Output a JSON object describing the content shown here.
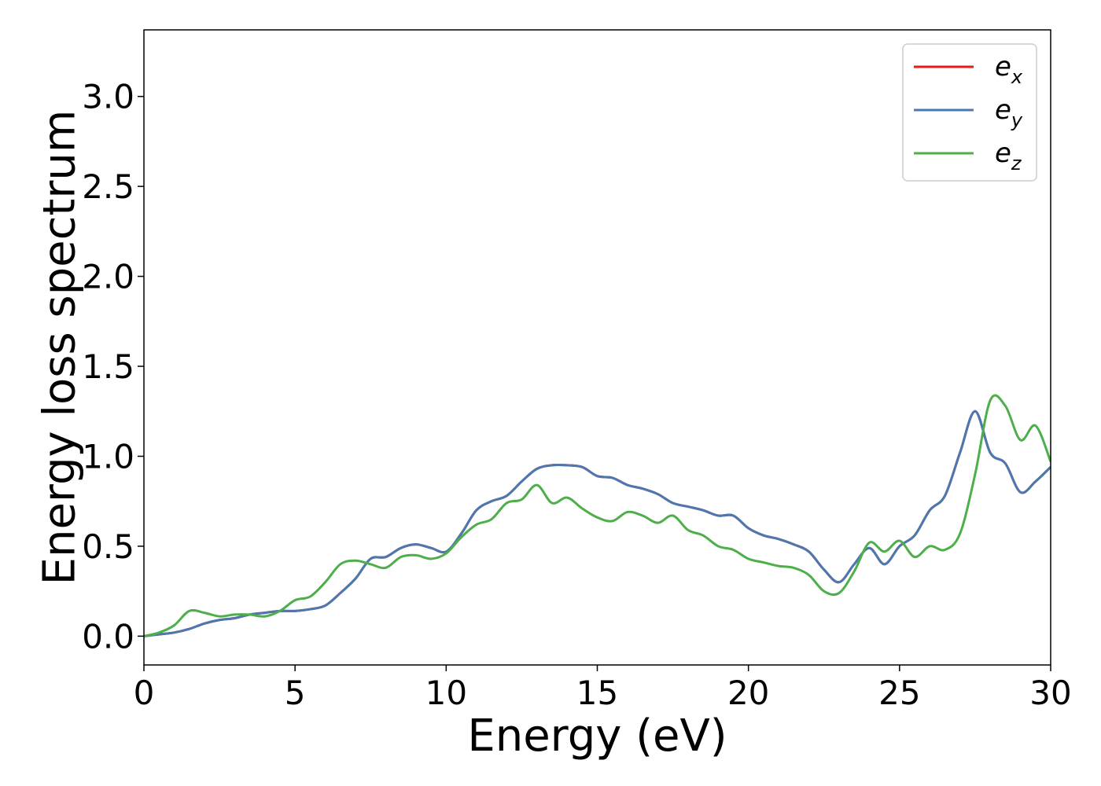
{
  "chart_data": {
    "type": "line",
    "title": "",
    "xlabel": "Energy (eV)",
    "ylabel": "Energy loss spectrum",
    "xlim": [
      0,
      30
    ],
    "ylim": [
      -0.16,
      3.37
    ],
    "xticks": [
      0,
      5,
      10,
      15,
      20,
      25,
      30
    ],
    "xtick_labels": [
      "0",
      "5",
      "10",
      "15",
      "20",
      "25",
      "30"
    ],
    "yticks": [
      0.0,
      0.5,
      1.0,
      1.5,
      2.0,
      2.5,
      3.0
    ],
    "ytick_labels": [
      "0.0",
      "0.5",
      "1.0",
      "1.5",
      "2.0",
      "2.5",
      "3.0"
    ],
    "grid": false,
    "legend": {
      "position": "top-right",
      "entries": [
        {
          "base": "e",
          "sub": "x",
          "color": "#e41a1c"
        },
        {
          "base": "e",
          "sub": "y",
          "color": "#4a78b0"
        },
        {
          "base": "e",
          "sub": "z",
          "color": "#4daf4a"
        }
      ]
    },
    "series": [
      {
        "name": "e_x",
        "color": "#e41a1c",
        "points": [
          [
            0,
            0.0
          ],
          [
            0.5,
            0.01
          ],
          [
            1.0,
            0.02
          ],
          [
            1.5,
            0.04
          ],
          [
            2.0,
            0.07
          ],
          [
            2.5,
            0.09
          ],
          [
            3.0,
            0.1
          ],
          [
            3.5,
            0.12
          ],
          [
            4.0,
            0.13
          ],
          [
            4.5,
            0.14
          ],
          [
            5.0,
            0.14
          ],
          [
            5.5,
            0.15
          ],
          [
            6.0,
            0.17
          ],
          [
            6.5,
            0.24
          ],
          [
            7.0,
            0.32
          ],
          [
            7.5,
            0.43
          ],
          [
            8.0,
            0.44
          ],
          [
            8.5,
            0.49
          ],
          [
            9.0,
            0.51
          ],
          [
            9.5,
            0.49
          ],
          [
            10.0,
            0.47
          ],
          [
            10.5,
            0.57
          ],
          [
            11.0,
            0.7
          ],
          [
            11.5,
            0.75
          ],
          [
            12.0,
            0.78
          ],
          [
            12.5,
            0.86
          ],
          [
            13.0,
            0.93
          ],
          [
            13.5,
            0.95
          ],
          [
            14.0,
            0.95
          ],
          [
            14.5,
            0.94
          ],
          [
            15.0,
            0.89
          ],
          [
            15.5,
            0.88
          ],
          [
            16.0,
            0.84
          ],
          [
            16.5,
            0.82
          ],
          [
            17.0,
            0.79
          ],
          [
            17.5,
            0.74
          ],
          [
            18.0,
            0.72
          ],
          [
            18.5,
            0.7
          ],
          [
            19.0,
            0.67
          ],
          [
            19.5,
            0.67
          ],
          [
            20.0,
            0.6
          ],
          [
            20.5,
            0.56
          ],
          [
            21.0,
            0.54
          ],
          [
            21.5,
            0.51
          ],
          [
            22.0,
            0.47
          ],
          [
            22.5,
            0.37
          ],
          [
            23.0,
            0.3
          ],
          [
            23.5,
            0.4
          ],
          [
            24.0,
            0.49
          ],
          [
            24.5,
            0.4
          ],
          [
            25.0,
            0.5
          ],
          [
            25.5,
            0.56
          ],
          [
            26.0,
            0.7
          ],
          [
            26.5,
            0.78
          ],
          [
            27.0,
            1.02
          ],
          [
            27.5,
            1.25
          ],
          [
            28.0,
            1.02
          ],
          [
            28.5,
            0.96
          ],
          [
            29.0,
            0.8
          ],
          [
            29.5,
            0.86
          ],
          [
            30.0,
            0.94
          ]
        ]
      },
      {
        "name": "e_y",
        "color": "#4a78b0",
        "points": [
          [
            0,
            0.0
          ],
          [
            0.5,
            0.01
          ],
          [
            1.0,
            0.02
          ],
          [
            1.5,
            0.04
          ],
          [
            2.0,
            0.07
          ],
          [
            2.5,
            0.09
          ],
          [
            3.0,
            0.1
          ],
          [
            3.5,
            0.12
          ],
          [
            4.0,
            0.13
          ],
          [
            4.5,
            0.14
          ],
          [
            5.0,
            0.14
          ],
          [
            5.5,
            0.15
          ],
          [
            6.0,
            0.17
          ],
          [
            6.5,
            0.24
          ],
          [
            7.0,
            0.32
          ],
          [
            7.5,
            0.43
          ],
          [
            8.0,
            0.44
          ],
          [
            8.5,
            0.49
          ],
          [
            9.0,
            0.51
          ],
          [
            9.5,
            0.49
          ],
          [
            10.0,
            0.47
          ],
          [
            10.5,
            0.57
          ],
          [
            11.0,
            0.7
          ],
          [
            11.5,
            0.75
          ],
          [
            12.0,
            0.78
          ],
          [
            12.5,
            0.86
          ],
          [
            13.0,
            0.93
          ],
          [
            13.5,
            0.95
          ],
          [
            14.0,
            0.95
          ],
          [
            14.5,
            0.94
          ],
          [
            15.0,
            0.89
          ],
          [
            15.5,
            0.88
          ],
          [
            16.0,
            0.84
          ],
          [
            16.5,
            0.82
          ],
          [
            17.0,
            0.79
          ],
          [
            17.5,
            0.74
          ],
          [
            18.0,
            0.72
          ],
          [
            18.5,
            0.7
          ],
          [
            19.0,
            0.67
          ],
          [
            19.5,
            0.67
          ],
          [
            20.0,
            0.6
          ],
          [
            20.5,
            0.56
          ],
          [
            21.0,
            0.54
          ],
          [
            21.5,
            0.51
          ],
          [
            22.0,
            0.47
          ],
          [
            22.5,
            0.37
          ],
          [
            23.0,
            0.3
          ],
          [
            23.5,
            0.4
          ],
          [
            24.0,
            0.49
          ],
          [
            24.5,
            0.4
          ],
          [
            25.0,
            0.5
          ],
          [
            25.5,
            0.56
          ],
          [
            26.0,
            0.7
          ],
          [
            26.5,
            0.78
          ],
          [
            27.0,
            1.02
          ],
          [
            27.5,
            1.25
          ],
          [
            28.0,
            1.02
          ],
          [
            28.5,
            0.96
          ],
          [
            29.0,
            0.8
          ],
          [
            29.5,
            0.86
          ],
          [
            30.0,
            0.94
          ]
        ]
      },
      {
        "name": "e_z",
        "color": "#4daf4a",
        "points": [
          [
            0,
            0.0
          ],
          [
            0.5,
            0.02
          ],
          [
            1.0,
            0.06
          ],
          [
            1.5,
            0.14
          ],
          [
            2.0,
            0.13
          ],
          [
            2.5,
            0.11
          ],
          [
            3.0,
            0.12
          ],
          [
            3.5,
            0.12
          ],
          [
            4.0,
            0.11
          ],
          [
            4.5,
            0.14
          ],
          [
            5.0,
            0.2
          ],
          [
            5.5,
            0.22
          ],
          [
            6.0,
            0.3
          ],
          [
            6.5,
            0.4
          ],
          [
            7.0,
            0.42
          ],
          [
            7.5,
            0.4
          ],
          [
            8.0,
            0.38
          ],
          [
            8.5,
            0.44
          ],
          [
            9.0,
            0.45
          ],
          [
            9.5,
            0.43
          ],
          [
            10.0,
            0.46
          ],
          [
            10.5,
            0.55
          ],
          [
            11.0,
            0.62
          ],
          [
            11.5,
            0.65
          ],
          [
            12.0,
            0.74
          ],
          [
            12.5,
            0.76
          ],
          [
            13.0,
            0.84
          ],
          [
            13.5,
            0.74
          ],
          [
            14.0,
            0.77
          ],
          [
            14.5,
            0.71
          ],
          [
            15.0,
            0.66
          ],
          [
            15.5,
            0.64
          ],
          [
            16.0,
            0.69
          ],
          [
            16.5,
            0.67
          ],
          [
            17.0,
            0.63
          ],
          [
            17.5,
            0.67
          ],
          [
            18.0,
            0.59
          ],
          [
            18.5,
            0.56
          ],
          [
            19.0,
            0.5
          ],
          [
            19.5,
            0.48
          ],
          [
            20.0,
            0.43
          ],
          [
            20.5,
            0.41
          ],
          [
            21.0,
            0.39
          ],
          [
            21.5,
            0.38
          ],
          [
            22.0,
            0.34
          ],
          [
            22.5,
            0.25
          ],
          [
            23.0,
            0.24
          ],
          [
            23.5,
            0.36
          ],
          [
            24.0,
            0.52
          ],
          [
            24.5,
            0.47
          ],
          [
            25.0,
            0.53
          ],
          [
            25.5,
            0.44
          ],
          [
            26.0,
            0.5
          ],
          [
            26.5,
            0.48
          ],
          [
            27.0,
            0.57
          ],
          [
            27.5,
            0.9
          ],
          [
            28.0,
            1.31
          ],
          [
            28.5,
            1.28
          ],
          [
            29.0,
            1.09
          ],
          [
            29.5,
            1.17
          ],
          [
            30.0,
            0.97
          ]
        ]
      }
    ]
  }
}
